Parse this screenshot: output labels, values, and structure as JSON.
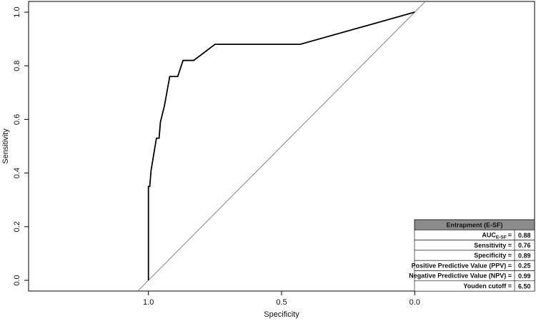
{
  "chart_data": {
    "type": "line",
    "xlabel": "Specificity",
    "ylabel": "Sensitivity",
    "x": [
      1.0,
      1.0,
      0.995,
      0.99,
      0.98,
      0.97,
      0.96,
      0.955,
      0.94,
      0.92,
      0.89,
      0.87,
      0.83,
      0.75,
      0.43,
      0.0
    ],
    "series": [
      {
        "color": "#000000",
        "values": [
          0.0,
          0.35,
          0.35,
          0.41,
          0.47,
          0.53,
          0.53,
          0.59,
          0.65,
          0.76,
          0.76,
          0.82,
          0.82,
          0.88,
          0.88,
          1.0
        ]
      }
    ],
    "xlim": [
      1.45,
      -0.45
    ],
    "ylim": [
      -0.04,
      1.04
    ],
    "xticks": [
      {
        "value": 1,
        "label": "1.0"
      },
      {
        "value": 0.5,
        "label": "0.5"
      },
      {
        "value": 0,
        "label": "0.0"
      }
    ],
    "yticks": [
      {
        "value": 0,
        "label": "0.0"
      },
      {
        "value": 0.2,
        "label": "0.2"
      },
      {
        "value": 0.4,
        "label": "0.4"
      },
      {
        "value": 0.6,
        "label": "0.6"
      },
      {
        "value": 0.8,
        "label": "0.8"
      },
      {
        "value": 1,
        "label": "1.0"
      }
    ],
    "grid": false,
    "table": {
      "title": "Entrapment (E-SF)",
      "rows": [
        {
          "label": "AUC",
          "sub": "E-SF",
          "suffix": "=",
          "value": "0.88"
        },
        {
          "label": "Sensitivity =",
          "value": "0.76"
        },
        {
          "label": "Specificity =",
          "value": "0.89"
        },
        {
          "label": "Positive Predictive Value (PPV) =",
          "value": "0.25"
        },
        {
          "label": "Negative Predictive Value (NPV) =",
          "value": "0.99"
        },
        {
          "label": "Youden cutoff =",
          "value": "6.50"
        }
      ]
    }
  }
}
